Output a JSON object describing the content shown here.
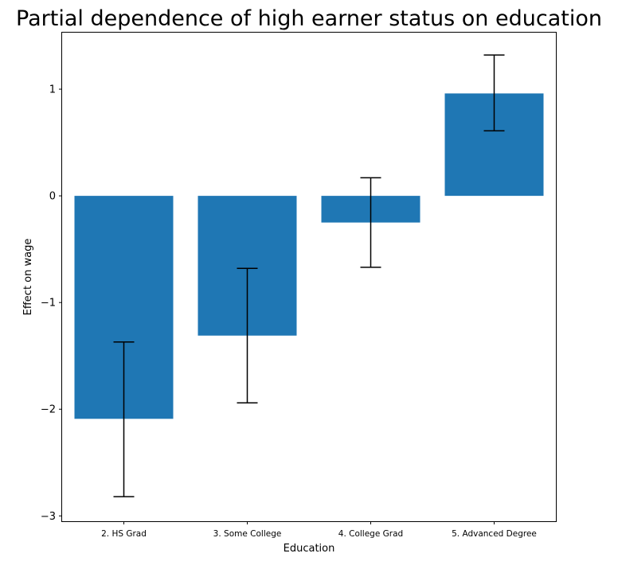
{
  "chart_data": {
    "type": "bar",
    "title": "Partial dependence of high earner status on education",
    "xlabel": "Education",
    "ylabel": "Effect on wage",
    "categories": [
      "2. HS Grad",
      "3. Some College",
      "4. College Grad",
      "5. Advanced Degree"
    ],
    "values": [
      -2.09,
      -1.31,
      -0.25,
      0.96
    ],
    "error_lower": [
      -2.82,
      -1.94,
      -0.67,
      0.61
    ],
    "error_upper": [
      -1.37,
      -0.68,
      0.17,
      1.32
    ],
    "ylim": [
      -3.05,
      1.53
    ],
    "yticks": [
      -3,
      -2,
      -1,
      0,
      1
    ],
    "ytick_labels": [
      "−3",
      "−2",
      "−1",
      "0",
      "1"
    ],
    "grid": false,
    "bar_color": "#1f77b4",
    "errorbar_color": "#000000"
  }
}
